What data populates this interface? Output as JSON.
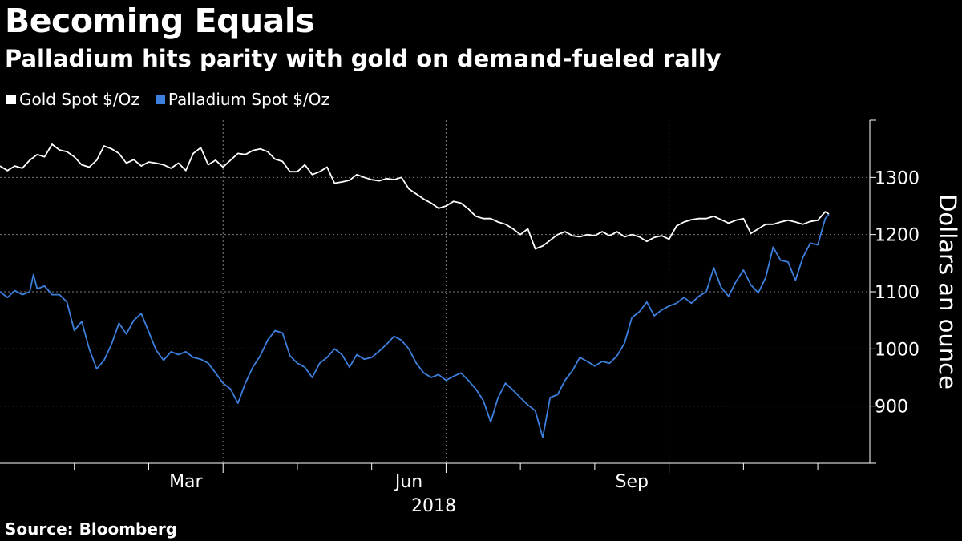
{
  "chart_data": {
    "type": "line",
    "title": "Becoming Equals",
    "subtitle": "Palladium hits parity with gold on demand-fueled rally",
    "ylabel": "Dollars an ounce",
    "xlabel_year": "2018",
    "ylim": [
      800,
      1400
    ],
    "y_ticks": [
      900,
      1000,
      1100,
      1200,
      1300
    ],
    "x_month_start": 0,
    "x_month_end": 11.7,
    "x_ticks": [
      {
        "label": "Mar",
        "month": 2.5
      },
      {
        "label": "Jun",
        "month": 5.5
      },
      {
        "label": "Sep",
        "month": 8.5
      }
    ],
    "x_minor_ticks": [
      1,
      2,
      3,
      4,
      5,
      6,
      7,
      8,
      9,
      10,
      11
    ],
    "grid": true,
    "legend_position": "top-left",
    "series": [
      {
        "name": "Gold Spot $/Oz",
        "color": "#ffffff",
        "points": [
          [
            0.0,
            1320
          ],
          [
            0.1,
            1312
          ],
          [
            0.2,
            1320
          ],
          [
            0.3,
            1316
          ],
          [
            0.4,
            1330
          ],
          [
            0.5,
            1340
          ],
          [
            0.6,
            1336
          ],
          [
            0.7,
            1358
          ],
          [
            0.8,
            1348
          ],
          [
            0.9,
            1345
          ],
          [
            1.0,
            1336
          ],
          [
            1.1,
            1322
          ],
          [
            1.2,
            1318
          ],
          [
            1.3,
            1330
          ],
          [
            1.4,
            1355
          ],
          [
            1.5,
            1350
          ],
          [
            1.6,
            1342
          ],
          [
            1.7,
            1325
          ],
          [
            1.8,
            1331
          ],
          [
            1.9,
            1320
          ],
          [
            2.0,
            1327
          ],
          [
            2.1,
            1325
          ],
          [
            2.2,
            1322
          ],
          [
            2.3,
            1316
          ],
          [
            2.4,
            1325
          ],
          [
            2.5,
            1312
          ],
          [
            2.6,
            1342
          ],
          [
            2.7,
            1352
          ],
          [
            2.8,
            1322
          ],
          [
            2.9,
            1330
          ],
          [
            3.0,
            1318
          ],
          [
            3.1,
            1330
          ],
          [
            3.2,
            1342
          ],
          [
            3.3,
            1340
          ],
          [
            3.4,
            1347
          ],
          [
            3.5,
            1350
          ],
          [
            3.6,
            1345
          ],
          [
            3.7,
            1332
          ],
          [
            3.8,
            1328
          ],
          [
            3.9,
            1310
          ],
          [
            4.0,
            1310
          ],
          [
            4.1,
            1322
          ],
          [
            4.2,
            1305
          ],
          [
            4.3,
            1310
          ],
          [
            4.4,
            1318
          ],
          [
            4.5,
            1290
          ],
          [
            4.6,
            1292
          ],
          [
            4.7,
            1295
          ],
          [
            4.8,
            1305
          ],
          [
            4.9,
            1300
          ],
          [
            5.0,
            1296
          ],
          [
            5.1,
            1294
          ],
          [
            5.2,
            1298
          ],
          [
            5.3,
            1296
          ],
          [
            5.4,
            1300
          ],
          [
            5.5,
            1280
          ],
          [
            5.6,
            1271
          ],
          [
            5.7,
            1262
          ],
          [
            5.8,
            1255
          ],
          [
            5.9,
            1246
          ],
          [
            6.0,
            1250
          ],
          [
            6.1,
            1258
          ],
          [
            6.2,
            1255
          ],
          [
            6.3,
            1245
          ],
          [
            6.4,
            1232
          ],
          [
            6.5,
            1228
          ],
          [
            6.6,
            1228
          ],
          [
            6.7,
            1222
          ],
          [
            6.8,
            1218
          ],
          [
            6.9,
            1210
          ],
          [
            7.0,
            1200
          ],
          [
            7.1,
            1210
          ],
          [
            7.2,
            1175
          ],
          [
            7.3,
            1180
          ],
          [
            7.4,
            1190
          ],
          [
            7.5,
            1200
          ],
          [
            7.6,
            1205
          ],
          [
            7.7,
            1198
          ],
          [
            7.8,
            1196
          ],
          [
            7.9,
            1200
          ],
          [
            8.0,
            1198
          ],
          [
            8.1,
            1205
          ],
          [
            8.2,
            1198
          ],
          [
            8.3,
            1205
          ],
          [
            8.4,
            1196
          ],
          [
            8.5,
            1200
          ],
          [
            8.6,
            1196
          ],
          [
            8.7,
            1188
          ],
          [
            8.8,
            1195
          ],
          [
            8.9,
            1198
          ],
          [
            9.0,
            1192
          ],
          [
            9.1,
            1215
          ],
          [
            9.2,
            1222
          ],
          [
            9.3,
            1226
          ],
          [
            9.4,
            1228
          ],
          [
            9.5,
            1228
          ],
          [
            9.6,
            1232
          ],
          [
            9.7,
            1226
          ],
          [
            9.8,
            1220
          ],
          [
            9.9,
            1225
          ],
          [
            10.0,
            1228
          ],
          [
            10.1,
            1202
          ],
          [
            10.2,
            1210
          ],
          [
            10.3,
            1218
          ],
          [
            10.4,
            1218
          ],
          [
            10.5,
            1222
          ],
          [
            10.6,
            1225
          ],
          [
            10.7,
            1222
          ],
          [
            10.8,
            1218
          ],
          [
            10.9,
            1223
          ],
          [
            11.0,
            1225
          ],
          [
            11.1,
            1240
          ],
          [
            11.15,
            1236
          ]
        ]
      },
      {
        "name": "Palladium Spot $/Oz",
        "color": "#3d7fdc",
        "points": [
          [
            0.0,
            1100
          ],
          [
            0.1,
            1090
          ],
          [
            0.2,
            1102
          ],
          [
            0.3,
            1095
          ],
          [
            0.4,
            1100
          ],
          [
            0.45,
            1130
          ],
          [
            0.5,
            1105
          ],
          [
            0.6,
            1110
          ],
          [
            0.7,
            1095
          ],
          [
            0.8,
            1095
          ],
          [
            0.9,
            1082
          ],
          [
            1.0,
            1032
          ],
          [
            1.1,
            1048
          ],
          [
            1.2,
            1000
          ],
          [
            1.3,
            965
          ],
          [
            1.4,
            980
          ],
          [
            1.5,
            1008
          ],
          [
            1.6,
            1045
          ],
          [
            1.7,
            1026
          ],
          [
            1.8,
            1050
          ],
          [
            1.9,
            1062
          ],
          [
            2.0,
            1030
          ],
          [
            2.1,
            998
          ],
          [
            2.2,
            980
          ],
          [
            2.3,
            995
          ],
          [
            2.4,
            990
          ],
          [
            2.5,
            995
          ],
          [
            2.6,
            985
          ],
          [
            2.7,
            982
          ],
          [
            2.8,
            975
          ],
          [
            2.9,
            958
          ],
          [
            3.0,
            940
          ],
          [
            3.1,
            930
          ],
          [
            3.2,
            905
          ],
          [
            3.3,
            940
          ],
          [
            3.4,
            968
          ],
          [
            3.5,
            988
          ],
          [
            3.6,
            1015
          ],
          [
            3.7,
            1032
          ],
          [
            3.8,
            1028
          ],
          [
            3.9,
            988
          ],
          [
            4.0,
            975
          ],
          [
            4.1,
            968
          ],
          [
            4.2,
            950
          ],
          [
            4.3,
            975
          ],
          [
            4.4,
            985
          ],
          [
            4.5,
            1000
          ],
          [
            4.6,
            990
          ],
          [
            4.7,
            968
          ],
          [
            4.8,
            990
          ],
          [
            4.9,
            982
          ],
          [
            5.0,
            985
          ],
          [
            5.1,
            996
          ],
          [
            5.2,
            1008
          ],
          [
            5.3,
            1022
          ],
          [
            5.4,
            1015
          ],
          [
            5.5,
            1000
          ],
          [
            5.6,
            975
          ],
          [
            5.7,
            958
          ],
          [
            5.8,
            950
          ],
          [
            5.9,
            955
          ],
          [
            6.0,
            945
          ],
          [
            6.1,
            952
          ],
          [
            6.2,
            958
          ],
          [
            6.3,
            945
          ],
          [
            6.4,
            930
          ],
          [
            6.5,
            910
          ],
          [
            6.6,
            872
          ],
          [
            6.7,
            915
          ],
          [
            6.8,
            940
          ],
          [
            6.9,
            928
          ],
          [
            7.0,
            915
          ],
          [
            7.1,
            902
          ],
          [
            7.2,
            892
          ],
          [
            7.3,
            845
          ],
          [
            7.4,
            915
          ],
          [
            7.5,
            920
          ],
          [
            7.6,
            945
          ],
          [
            7.7,
            962
          ],
          [
            7.8,
            985
          ],
          [
            7.9,
            978
          ],
          [
            8.0,
            970
          ],
          [
            8.1,
            978
          ],
          [
            8.2,
            975
          ],
          [
            8.3,
            988
          ],
          [
            8.4,
            1010
          ],
          [
            8.5,
            1055
          ],
          [
            8.6,
            1065
          ],
          [
            8.7,
            1082
          ],
          [
            8.8,
            1058
          ],
          [
            8.9,
            1068
          ],
          [
            9.0,
            1075
          ],
          [
            9.1,
            1080
          ],
          [
            9.2,
            1090
          ],
          [
            9.3,
            1080
          ],
          [
            9.4,
            1092
          ],
          [
            9.5,
            1100
          ],
          [
            9.6,
            1142
          ],
          [
            9.7,
            1108
          ],
          [
            9.8,
            1092
          ],
          [
            9.9,
            1118
          ],
          [
            10.0,
            1138
          ],
          [
            10.1,
            1112
          ],
          [
            10.2,
            1098
          ],
          [
            10.3,
            1125
          ],
          [
            10.4,
            1178
          ],
          [
            10.5,
            1155
          ],
          [
            10.6,
            1152
          ],
          [
            10.7,
            1120
          ],
          [
            10.8,
            1160
          ],
          [
            10.9,
            1185
          ],
          [
            11.0,
            1182
          ],
          [
            11.1,
            1228
          ],
          [
            11.15,
            1235
          ]
        ]
      }
    ]
  },
  "source": "Source: Bloomberg"
}
